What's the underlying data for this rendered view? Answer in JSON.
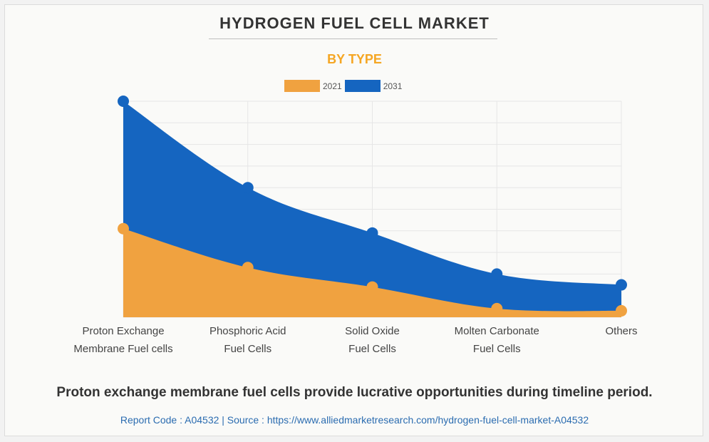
{
  "chart_data": {
    "type": "area",
    "title": "HYDROGEN FUEL CELL MARKET",
    "subtitle": "BY TYPE",
    "categories": [
      [
        "Proton Exchange",
        "Membrane Fuel cells"
      ],
      [
        "Phosphoric Acid",
        "Fuel Cells"
      ],
      [
        "Solid Oxide",
        "Fuel Cells"
      ],
      [
        "Molten Carbonate",
        "Fuel Cells"
      ],
      [
        "Others"
      ]
    ],
    "series": [
      {
        "name": "2021",
        "values": [
          41,
          23,
          14,
          4,
          3
        ],
        "color": "#f0a240"
      },
      {
        "name": "2031",
        "values": [
          100,
          60,
          39,
          20,
          15
        ],
        "color": "#1565c0"
      }
    ],
    "ylim": [
      0,
      100
    ],
    "grid": true,
    "legend_position": "top-center"
  },
  "footer": {
    "headline": "Proton exchange membrane fuel cells provide lucrative opportunities during timeline period.",
    "report_line": "Report Code : A04532  |  Source : https://www.alliedmarketresearch.com/hydrogen-fuel-cell-market-A04532"
  }
}
